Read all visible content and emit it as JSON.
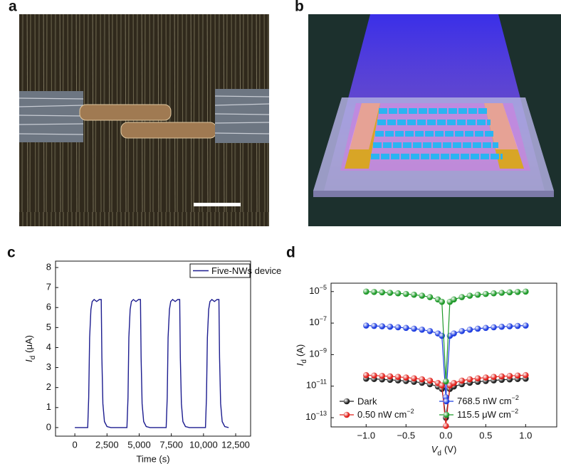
{
  "panel_labels": [
    "a",
    "b",
    "c",
    "d"
  ],
  "chart_data": [
    {
      "type": "line",
      "xlabel": "Time (s)",
      "ylabel": {
        "symbol": "I",
        "subscript": "d",
        "unit": "(μA)"
      },
      "x": [
        0,
        1000,
        1080,
        1150,
        1250,
        1350,
        1500,
        1700,
        1900,
        2050,
        2100,
        2180,
        2300,
        2500,
        2800,
        4050,
        4130,
        4200,
        4300,
        4400,
        4550,
        4750,
        4950,
        5100,
        5150,
        5230,
        5350,
        5550,
        5850,
        7100,
        7180,
        7250,
        7350,
        7450,
        7600,
        7800,
        8000,
        8150,
        8200,
        8280,
        8400,
        8600,
        8900,
        10150,
        10230,
        10300,
        10400,
        10500,
        10650,
        10850,
        11050,
        11200,
        11250,
        11330,
        11450,
        11650,
        11950
      ],
      "series": [
        {
          "name": "Five-NWs device",
          "color": "#1c1c8f",
          "values": [
            0,
            0,
            1.5,
            4.5,
            5.9,
            6.3,
            6.4,
            6.3,
            6.4,
            6.4,
            3.5,
            1.2,
            0.3,
            0.05,
            0,
            0,
            1.5,
            4.5,
            5.9,
            6.3,
            6.4,
            6.3,
            6.4,
            6.4,
            3.5,
            1.2,
            0.3,
            0.05,
            0,
            0,
            1.5,
            4.5,
            5.9,
            6.3,
            6.4,
            6.3,
            6.4,
            6.4,
            3.5,
            1.2,
            0.3,
            0.05,
            0,
            0,
            1.5,
            4.5,
            5.9,
            6.3,
            6.4,
            6.3,
            6.4,
            6.4,
            3.5,
            1.2,
            0.3,
            0.05,
            0
          ]
        }
      ],
      "xlim": [
        -1500,
        13660
      ],
      "ylim": [
        -0.43,
        8.32
      ],
      "xticks": [
        0,
        {
          "value": 2500,
          "label": "2,500"
        },
        {
          "value": 5000,
          "label": "5,000"
        },
        {
          "value": 7500,
          "label": "7,500"
        },
        {
          "value": 10000,
          "label": "10,000"
        },
        {
          "value": 12500,
          "label": "12,500"
        }
      ],
      "yticks": [
        0,
        1,
        2,
        3,
        4,
        5,
        6,
        7,
        8
      ],
      "legend": "upper right"
    },
    {
      "type": "scatter",
      "xlabel": {
        "symbol": "V",
        "subscript": "d",
        "unit": "(V)"
      },
      "ylabel": {
        "symbol": "I",
        "subscript": "d",
        "unit": "(A)"
      },
      "yscale": "log",
      "x": [
        -1.0,
        -0.9,
        -0.8,
        -0.7,
        -0.6,
        -0.5,
        -0.4,
        -0.3,
        -0.2,
        -0.1,
        -0.05,
        0,
        0.05,
        0.1,
        0.2,
        0.3,
        0.4,
        0.5,
        0.6,
        0.7,
        0.8,
        0.9,
        1.0
      ],
      "series": [
        {
          "name": "Dark",
          "color": "#222222",
          "values": [
            3e-11,
            2.85e-11,
            2.68e-11,
            2.51e-11,
            2.32e-11,
            2.12e-11,
            1.9e-11,
            1.64e-11,
            1.34e-11,
            9.5e-12,
            6.7e-12,
            1e-13,
            6.7e-12,
            9.5e-12,
            1.34e-11,
            1.64e-11,
            1.9e-11,
            2.12e-11,
            2.32e-11,
            2.51e-11,
            2.68e-11,
            2.85e-11,
            3e-11
          ]
        },
        {
          "name": "0.50 nW cm−2",
          "color": "#e0201b",
          "values": [
            5e-11,
            4.74e-11,
            4.47e-11,
            4.18e-11,
            3.87e-11,
            3.54e-11,
            3.16e-11,
            2.74e-11,
            2.24e-11,
            1.58e-11,
            1.12e-11,
            3e-14,
            1.12e-11,
            1.58e-11,
            2.24e-11,
            2.74e-11,
            3.16e-11,
            3.54e-11,
            3.87e-11,
            4.18e-11,
            4.47e-11,
            4.74e-11,
            5e-11
          ]
        },
        {
          "name": "768.5 nW cm−2",
          "color": "#1f3ee0",
          "values": [
            7e-08,
            6.64e-08,
            6.26e-08,
            5.86e-08,
            5.42e-08,
            4.95e-08,
            4.42e-08,
            3.84e-08,
            3.13e-08,
            2.21e-08,
            1.57e-08,
            2e-12,
            1.57e-08,
            2.21e-08,
            3.13e-08,
            3.84e-08,
            4.42e-08,
            4.95e-08,
            5.42e-08,
            5.86e-08,
            6.26e-08,
            6.64e-08,
            7e-08
          ]
        },
        {
          "name": "115.5 μW cm−2",
          "color": "#1f9a2a",
          "values": [
            1e-05,
            9.49e-06,
            8.94e-06,
            8.37e-06,
            7.75e-06,
            7.07e-06,
            6.32e-06,
            5.48e-06,
            4.47e-06,
            3.16e-06,
            2.24e-06,
            2e-11,
            2.24e-06,
            3.16e-06,
            4.47e-06,
            5.48e-06,
            6.32e-06,
            7.07e-06,
            7.75e-06,
            8.37e-06,
            8.94e-06,
            9.49e-06,
            1e-05
          ]
        }
      ],
      "xlim": [
        -1.44,
        1.39
      ],
      "ylim": [
        2.6e-14,
        3.4e-05
      ],
      "xticks": [
        {
          "value": -1.0,
          "label": "−1.0"
        },
        {
          "value": -0.5,
          "label": "−0.5"
        },
        {
          "value": 0,
          "label": "0.0"
        },
        0.5,
        {
          "value": 1,
          "label": "1.0"
        }
      ],
      "yticks": [
        {
          "value": 1e-13,
          "label": "10−13"
        },
        {
          "value": 1e-11,
          "label": "10−11"
        },
        {
          "value": 1e-09,
          "label": "10−9"
        },
        {
          "value": 1e-07,
          "label": "10−7"
        },
        {
          "value": 1e-05,
          "label": "10−5"
        }
      ],
      "legend": "lower center"
    }
  ]
}
